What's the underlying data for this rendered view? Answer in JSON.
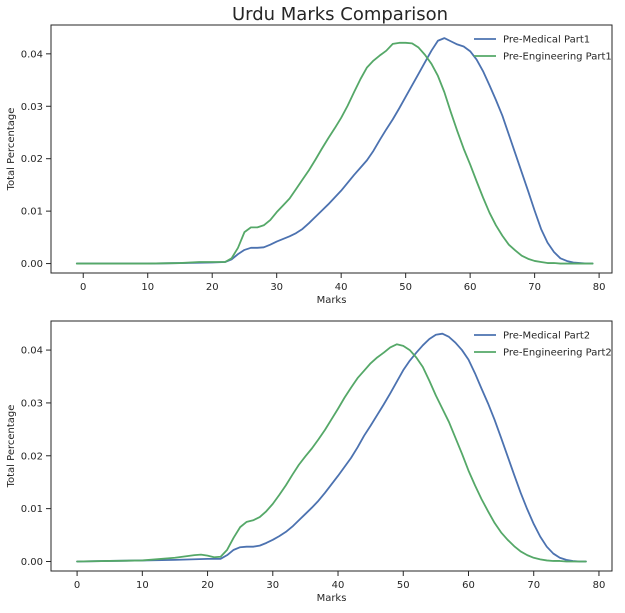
{
  "chart_data": [
    {
      "type": "line",
      "title": "Urdu Marks Comparison",
      "xlabel": "Marks",
      "ylabel": "Total Percentage",
      "xlim": [
        -5,
        82
      ],
      "ylim": [
        -0.0018,
        0.0455
      ],
      "x_ticks": [
        0,
        10,
        20,
        30,
        40,
        50,
        60,
        70,
        80
      ],
      "y_ticks": [
        0.0,
        0.01,
        0.02,
        0.03,
        0.04
      ],
      "y_tick_labels": [
        "0.00",
        "0.01",
        "0.02",
        "0.03",
        "0.04"
      ],
      "grid": false,
      "legend_position": "top-right",
      "series": [
        {
          "name": "Pre-Medical Part1",
          "color": "#4c72b0",
          "x": [
            -1,
            5,
            10,
            15,
            20,
            22,
            23,
            24,
            25,
            26,
            27,
            28,
            29,
            30,
            31,
            32,
            33,
            34,
            35,
            36,
            37,
            38,
            39,
            40,
            41,
            42,
            43,
            44,
            45,
            46,
            47,
            48,
            49,
            50,
            51,
            52,
            53,
            54,
            55,
            56,
            57,
            58,
            59,
            60,
            61,
            62,
            63,
            64,
            65,
            66,
            67,
            68,
            69,
            70,
            71,
            72,
            73,
            74,
            75,
            76,
            77,
            78,
            79
          ],
          "y": [
            0.0,
            0.0,
            0.0,
            0.0001,
            0.0002,
            0.0003,
            0.0008,
            0.0018,
            0.0026,
            0.003,
            0.003,
            0.0031,
            0.0036,
            0.0042,
            0.0047,
            0.0052,
            0.0058,
            0.0066,
            0.0077,
            0.0089,
            0.0101,
            0.0113,
            0.0126,
            0.0139,
            0.0154,
            0.0169,
            0.0183,
            0.0197,
            0.0215,
            0.0236,
            0.0256,
            0.0275,
            0.0296,
            0.0318,
            0.034,
            0.0362,
            0.0384,
            0.0406,
            0.0425,
            0.043,
            0.0424,
            0.0418,
            0.0414,
            0.0405,
            0.0389,
            0.0367,
            0.034,
            0.0312,
            0.0282,
            0.0246,
            0.021,
            0.0174,
            0.0138,
            0.0101,
            0.0066,
            0.004,
            0.0022,
            0.001,
            0.0005,
            0.0002,
            0.0001,
            0.0,
            0.0
          ]
        },
        {
          "name": "Pre-Engineering Part1",
          "color": "#55a868",
          "x": [
            -1,
            5,
            10,
            15,
            18,
            20,
            22,
            23,
            24,
            25,
            26,
            27,
            28,
            29,
            30,
            31,
            32,
            33,
            34,
            35,
            36,
            37,
            38,
            39,
            40,
            41,
            42,
            43,
            44,
            45,
            46,
            47,
            48,
            49,
            50,
            51,
            52,
            53,
            54,
            55,
            56,
            57,
            58,
            59,
            60,
            61,
            62,
            63,
            64,
            65,
            66,
            67,
            68,
            69,
            70,
            71,
            72,
            73,
            74,
            75,
            76,
            77,
            78,
            79
          ],
          "y": [
            0.0,
            0.0,
            0.0,
            0.0001,
            0.0003,
            0.0003,
            0.0003,
            0.001,
            0.003,
            0.006,
            0.0069,
            0.0069,
            0.0073,
            0.0083,
            0.0098,
            0.0111,
            0.0124,
            0.0142,
            0.016,
            0.0178,
            0.0198,
            0.0219,
            0.0239,
            0.0258,
            0.0278,
            0.0301,
            0.0327,
            0.0352,
            0.0374,
            0.0387,
            0.0397,
            0.0406,
            0.0419,
            0.0421,
            0.0421,
            0.042,
            0.0412,
            0.0398,
            0.0381,
            0.0358,
            0.0327,
            0.0289,
            0.0253,
            0.0219,
            0.0189,
            0.0157,
            0.0126,
            0.0097,
            0.0073,
            0.0053,
            0.0036,
            0.0025,
            0.0015,
            0.0009,
            0.0005,
            0.0003,
            0.0001,
            0.0001,
            0.0,
            0.0,
            0.0,
            0.0,
            0.0,
            0.0
          ]
        }
      ]
    },
    {
      "type": "line",
      "title": "",
      "xlabel": "Marks",
      "ylabel": "Total Percentage",
      "xlim": [
        -4,
        82
      ],
      "ylim": [
        -0.0018,
        0.0455
      ],
      "x_ticks": [
        0,
        10,
        20,
        30,
        40,
        50,
        60,
        70,
        80
      ],
      "y_ticks": [
        0.0,
        0.01,
        0.02,
        0.03,
        0.04
      ],
      "y_tick_labels": [
        "0.00",
        "0.01",
        "0.02",
        "0.03",
        "0.04"
      ],
      "grid": false,
      "legend_position": "top-right",
      "series": [
        {
          "name": "Pre-Medical Part2",
          "color": "#4c72b0",
          "x": [
            0,
            5,
            10,
            15,
            20,
            22,
            23,
            24,
            25,
            26,
            27,
            28,
            29,
            30,
            31,
            32,
            33,
            34,
            35,
            36,
            37,
            38,
            39,
            40,
            41,
            42,
            43,
            44,
            45,
            46,
            47,
            48,
            49,
            50,
            51,
            52,
            53,
            54,
            55,
            56,
            57,
            58,
            59,
            60,
            61,
            62,
            63,
            64,
            65,
            66,
            67,
            68,
            69,
            70,
            71,
            72,
            73,
            74,
            75,
            76,
            77,
            78
          ],
          "y": [
            0.0,
            0.0001,
            0.0002,
            0.0003,
            0.0005,
            0.0005,
            0.0012,
            0.0022,
            0.0027,
            0.0028,
            0.0028,
            0.003,
            0.0035,
            0.0041,
            0.0048,
            0.0056,
            0.0066,
            0.0078,
            0.009,
            0.0102,
            0.0115,
            0.013,
            0.0146,
            0.0162,
            0.0179,
            0.0196,
            0.0216,
            0.0238,
            0.0257,
            0.0277,
            0.0297,
            0.0318,
            0.034,
            0.0362,
            0.038,
            0.0395,
            0.0409,
            0.0421,
            0.0429,
            0.0431,
            0.0425,
            0.0414,
            0.04,
            0.0382,
            0.0356,
            0.0327,
            0.0299,
            0.0268,
            0.0234,
            0.0199,
            0.0164,
            0.013,
            0.0099,
            0.0071,
            0.0047,
            0.0028,
            0.0015,
            0.0007,
            0.0003,
            0.0001,
            0.0,
            0.0
          ]
        },
        {
          "name": "Pre-Engineering Part2",
          "color": "#55a868",
          "x": [
            0,
            5,
            10,
            15,
            18,
            19,
            20,
            21,
            22,
            23,
            24,
            25,
            26,
            27,
            28,
            29,
            30,
            31,
            32,
            33,
            34,
            35,
            36,
            37,
            38,
            39,
            40,
            41,
            42,
            43,
            44,
            45,
            46,
            47,
            48,
            49,
            50,
            51,
            52,
            53,
            54,
            55,
            56,
            57,
            58,
            59,
            60,
            61,
            62,
            63,
            64,
            65,
            66,
            67,
            68,
            69,
            70,
            71,
            72,
            73,
            74,
            75,
            76,
            77,
            78
          ],
          "y": [
            0.0,
            0.0001,
            0.0002,
            0.0007,
            0.0012,
            0.0013,
            0.0011,
            0.0008,
            0.0009,
            0.0022,
            0.0045,
            0.0065,
            0.0075,
            0.0078,
            0.0084,
            0.0095,
            0.0109,
            0.0126,
            0.0144,
            0.0164,
            0.0183,
            0.0199,
            0.0214,
            0.0231,
            0.0249,
            0.0269,
            0.0289,
            0.031,
            0.0329,
            0.0347,
            0.0361,
            0.0375,
            0.0386,
            0.0395,
            0.0405,
            0.0411,
            0.0408,
            0.04,
            0.0386,
            0.0368,
            0.0342,
            0.0314,
            0.0289,
            0.0264,
            0.0234,
            0.0204,
            0.0172,
            0.0144,
            0.0118,
            0.0095,
            0.0073,
            0.0055,
            0.0041,
            0.0029,
            0.0019,
            0.0012,
            0.0007,
            0.0004,
            0.0002,
            0.0001,
            0.0001,
            0.0,
            0.0,
            0.0,
            0.0
          ]
        }
      ]
    }
  ]
}
